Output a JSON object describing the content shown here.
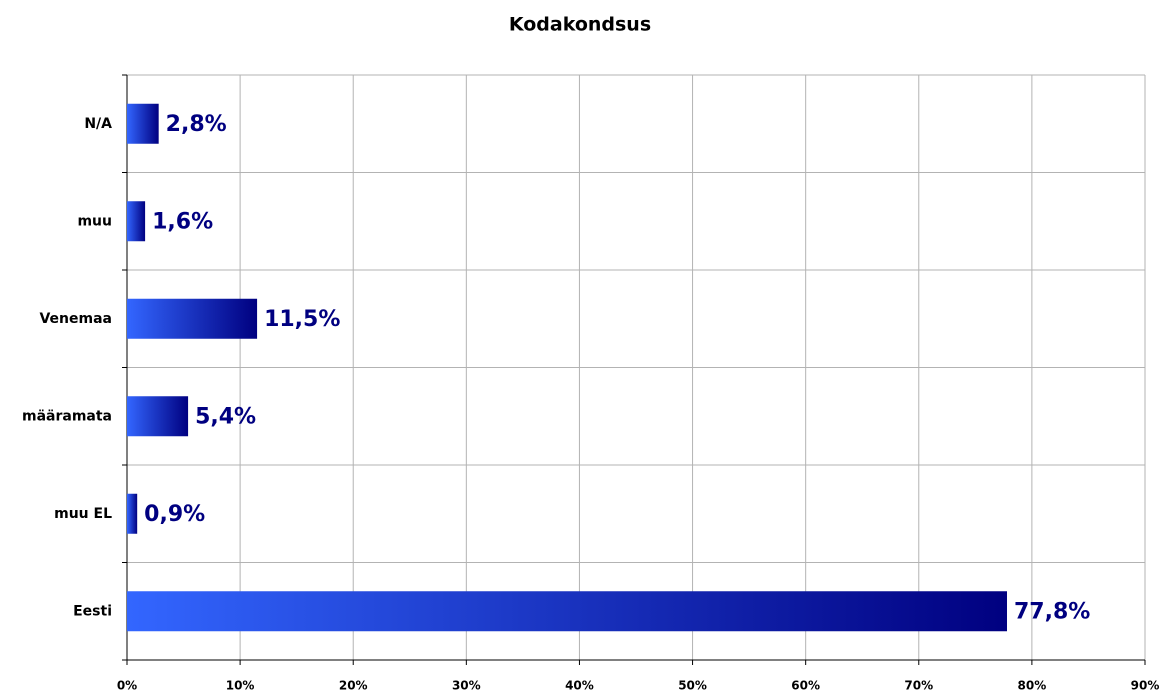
{
  "chart_data": {
    "type": "barh",
    "title": "Kodakondsus",
    "categories": [
      "N/A",
      "muu",
      "Venemaa",
      "määramata",
      "muu EL",
      "Eesti"
    ],
    "values": [
      2.8,
      1.6,
      11.5,
      5.4,
      0.9,
      77.8
    ],
    "value_labels": [
      "2,8%",
      "1,6%",
      "11,5%",
      "5,4%",
      "0,9%",
      "77,8%"
    ],
    "gradient": [
      "#3366ff",
      "#000080"
    ],
    "label_color": "#000080",
    "xlim": [
      0,
      90
    ],
    "xticks": [
      {
        "value": 0,
        "label": "0%"
      },
      {
        "value": 10,
        "label": "10%"
      },
      {
        "value": 20,
        "label": "20%"
      },
      {
        "value": 30,
        "label": "30%"
      },
      {
        "value": 40,
        "label": "40%"
      },
      {
        "value": 50,
        "label": "50%"
      },
      {
        "value": 60,
        "label": "60%"
      },
      {
        "value": 70,
        "label": "70%"
      },
      {
        "value": 80,
        "label": "80%"
      },
      {
        "value": 90,
        "label": "90%"
      }
    ],
    "grid": true
  }
}
